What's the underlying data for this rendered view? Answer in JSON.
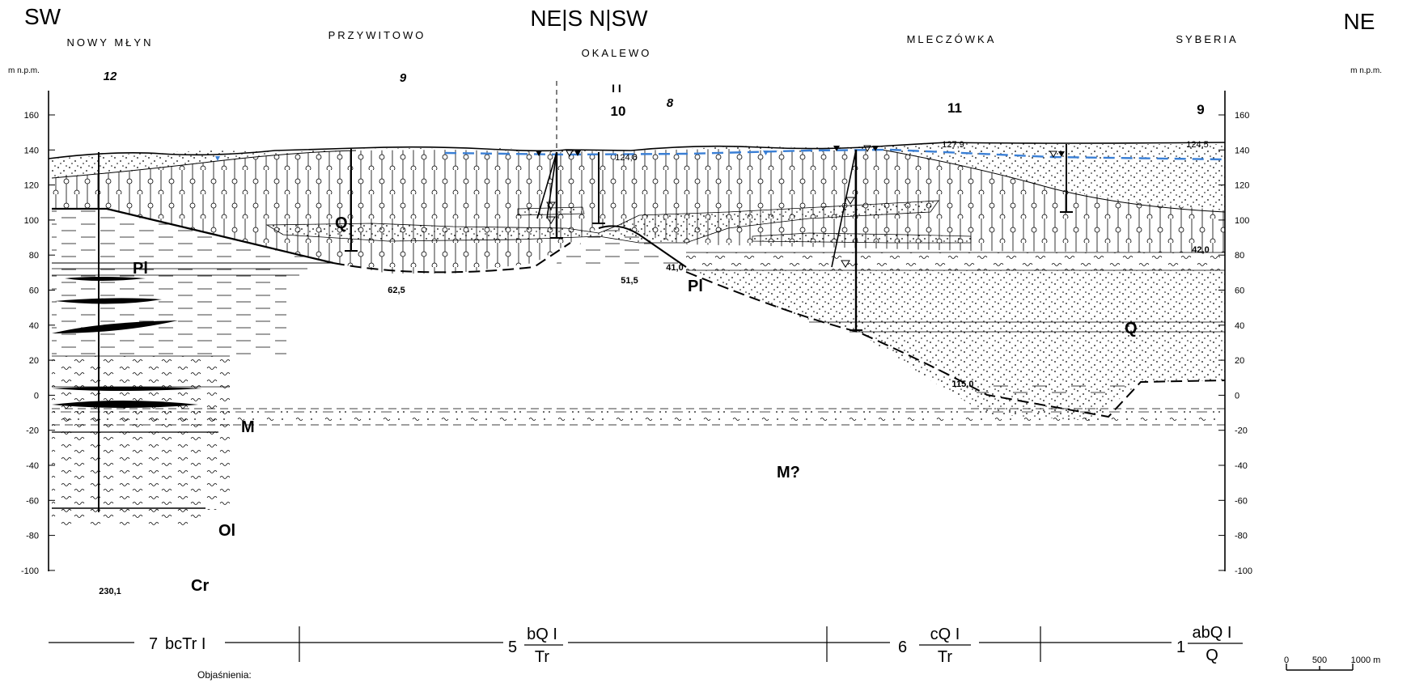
{
  "directions": {
    "left": "SW",
    "center": "NE|S N|SW",
    "right": "NE"
  },
  "localities": [
    "NOWY MŁYN",
    "PRZYWITOWO",
    "OKALEWO",
    "MLECZÓWKA",
    "SYBERIA"
  ],
  "boreholes": [
    {
      "id": "12",
      "style": "italic"
    },
    {
      "id": "9",
      "style": "italic"
    },
    {
      "id": "10",
      "style": "bold"
    },
    {
      "id": "8",
      "style": "italic"
    },
    {
      "id": "11",
      "style": "bold"
    },
    {
      "id": "9",
      "style": "bold"
    }
  ],
  "axis_unit": "m n.p.m.",
  "axis_ticks": [
    "160",
    "140",
    "120",
    "100",
    "80",
    "60",
    "40",
    "20",
    "0",
    "-20",
    "-40",
    "-60",
    "-80",
    "-100"
  ],
  "elevations": [
    "124,6",
    "127,9",
    "124,5"
  ],
  "depths": [
    "230,1",
    "62,5",
    "51,5",
    "41,0",
    "115,0",
    "42,0"
  ],
  "geology_labels": [
    "Q",
    "Pl",
    "Pl",
    "M",
    "Ol",
    "Cr",
    "Q",
    "M?"
  ],
  "zones": [
    {
      "num": "7",
      "text": "bcTr I"
    },
    {
      "num": "5",
      "num_top": "bQ I",
      "den": "Tr"
    },
    {
      "num": "6",
      "num_top": "cQ I",
      "den": "Tr"
    },
    {
      "num": "1",
      "num_top": "abQ I",
      "den": "Q"
    }
  ],
  "scale": [
    "0",
    "500",
    "1000 m"
  ],
  "legend_title": "Objaśnienia:",
  "colors": {
    "water_table": "#3a7fd5",
    "line": "#000000"
  }
}
